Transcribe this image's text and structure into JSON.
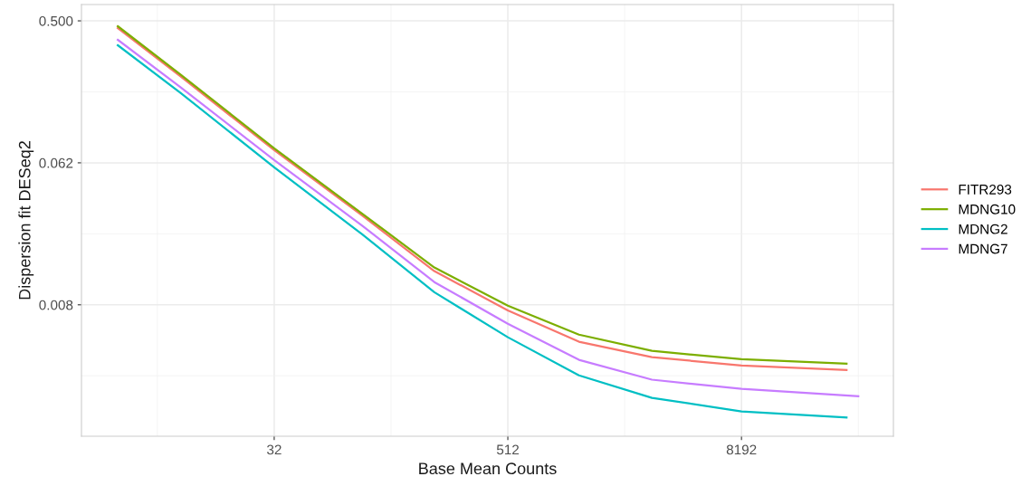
{
  "chart_data": {
    "type": "line",
    "xlabel": "Base Mean Counts",
    "ylabel": "Dispersion fit DESeq2",
    "log": "xy",
    "grid": true,
    "legend": "right",
    "xlim": [
      3.25,
      49700
    ],
    "ylim": [
      0.00114,
      0.635
    ],
    "xticks": [
      32,
      512,
      8192
    ],
    "yticks": [
      {
        "value": 0.0078125,
        "label": "0.008"
      },
      {
        "value": 0.0625,
        "label": "0.062"
      },
      {
        "value": 0.5,
        "label": "0.500"
      }
    ],
    "x": [
      5,
      10.6,
      32,
      90.6,
      214,
      512,
      1190,
      2830,
      8192,
      28500
    ],
    "series": [
      {
        "name": "FITR293",
        "color": "#f8766d",
        "values": [
          0.45,
          0.22,
          0.0752,
          0.029,
          0.0128,
          0.0072,
          0.00455,
          0.00363,
          0.00321,
          0.00301
        ]
      },
      {
        "name": "MDNG10",
        "color": "#7cae00",
        "values": [
          0.462,
          0.226,
          0.0773,
          0.0298,
          0.0135,
          0.00771,
          0.00505,
          0.00398,
          0.00352,
          0.0033
        ]
      },
      {
        "name": "MDNG2",
        "color": "#00bfc4",
        "values": [
          0.35,
          0.173,
          0.0585,
          0.022,
          0.0094,
          0.00486,
          0.00278,
          0.002,
          0.00164,
          0.0015
        ]
      },
      {
        "name": "MDNG7",
        "color": "#c77cff",
        "x": [
          5,
          10.6,
          32,
          90.6,
          214,
          512,
          1190,
          2830,
          8192,
          32768
        ],
        "values": [
          0.379,
          0.188,
          0.065,
          0.025,
          0.0109,
          0.00592,
          0.00349,
          0.00261,
          0.00228,
          0.00205
        ]
      }
    ]
  }
}
